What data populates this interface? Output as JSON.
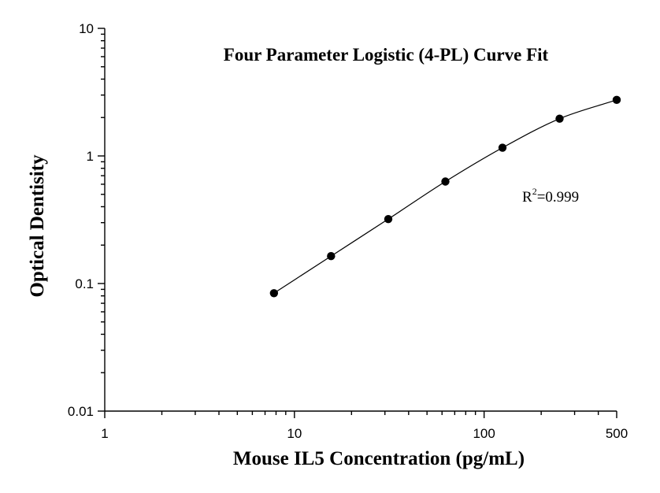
{
  "chart_data": {
    "type": "scatter",
    "title": "Four Parameter Logistic (4-PL) Curve Fit",
    "xlabel": "Mouse IL5 Concentration (pg/mL)",
    "ylabel": "Optical Dentisity",
    "x_scale": "log",
    "y_scale": "log",
    "xlim": [
      1,
      500
    ],
    "ylim": [
      0.01,
      10
    ],
    "x_ticks": [
      {
        "value": 1,
        "label": "1"
      },
      {
        "value": 10,
        "label": "10"
      },
      {
        "value": 100,
        "label": "100"
      },
      {
        "value": 500,
        "label": "500"
      }
    ],
    "y_ticks": [
      {
        "value": 0.01,
        "label": "0.01"
      },
      {
        "value": 0.1,
        "label": "0.1"
      },
      {
        "value": 1,
        "label": "1"
      },
      {
        "value": 10,
        "label": "10"
      }
    ],
    "grid": false,
    "series": [
      {
        "x": [
          7.8,
          15.6,
          31.25,
          62.5,
          125,
          250,
          500
        ],
        "y": [
          0.084,
          0.164,
          0.32,
          0.63,
          1.16,
          1.96,
          2.75
        ]
      }
    ],
    "fit_curve": {
      "model": "4-PL",
      "style": "solid"
    },
    "annotation": {
      "base": "R",
      "superscript": "2",
      "value": "=0.999"
    }
  }
}
